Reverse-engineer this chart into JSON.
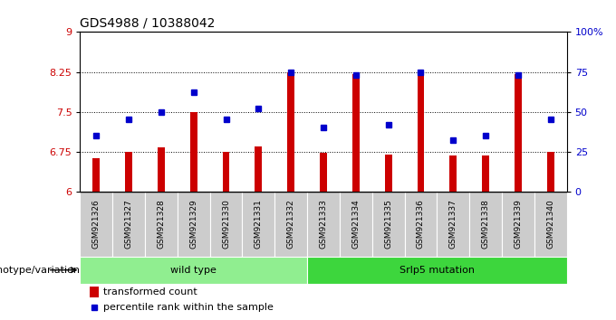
{
  "title": "GDS4988 / 10388042",
  "samples": [
    "GSM921326",
    "GSM921327",
    "GSM921328",
    "GSM921329",
    "GSM921330",
    "GSM921331",
    "GSM921332",
    "GSM921333",
    "GSM921334",
    "GSM921335",
    "GSM921336",
    "GSM921337",
    "GSM921338",
    "GSM921339",
    "GSM921340"
  ],
  "transformed_counts": [
    6.62,
    6.75,
    6.83,
    7.5,
    6.75,
    6.85,
    8.25,
    6.73,
    8.2,
    6.7,
    8.25,
    6.68,
    6.68,
    8.2,
    6.75
  ],
  "percentile_ranks": [
    35,
    45,
    50,
    62,
    45,
    52,
    75,
    40,
    73,
    42,
    75,
    32,
    35,
    73,
    45
  ],
  "bar_color": "#cc0000",
  "point_color": "#0000cc",
  "ylim_left": [
    6,
    9
  ],
  "ylim_right": [
    0,
    100
  ],
  "yticks_left": [
    6,
    6.75,
    7.5,
    8.25,
    9
  ],
  "ytick_labels_left": [
    "6",
    "6.75",
    "7.5",
    "8.25",
    "9"
  ],
  "yticks_right": [
    0,
    25,
    50,
    75,
    100
  ],
  "ytick_labels_right": [
    "0",
    "25",
    "50",
    "75",
    "100%"
  ],
  "hlines": [
    6.75,
    7.5,
    8.25
  ],
  "wild_type_count": 7,
  "genotype_groups": [
    {
      "label": "wild type",
      "start": 0,
      "end": 7,
      "color": "#90ee90"
    },
    {
      "label": "Srlp5 mutation",
      "start": 7,
      "end": 15,
      "color": "#3dd63d"
    }
  ],
  "legend_items": [
    {
      "label": "transformed count",
      "color": "#cc0000"
    },
    {
      "label": "percentile rank within the sample",
      "color": "#0000cc"
    }
  ],
  "genotype_label": "genotype/variation",
  "xtick_bg": "#cccccc",
  "plot_bg": "#ffffff"
}
